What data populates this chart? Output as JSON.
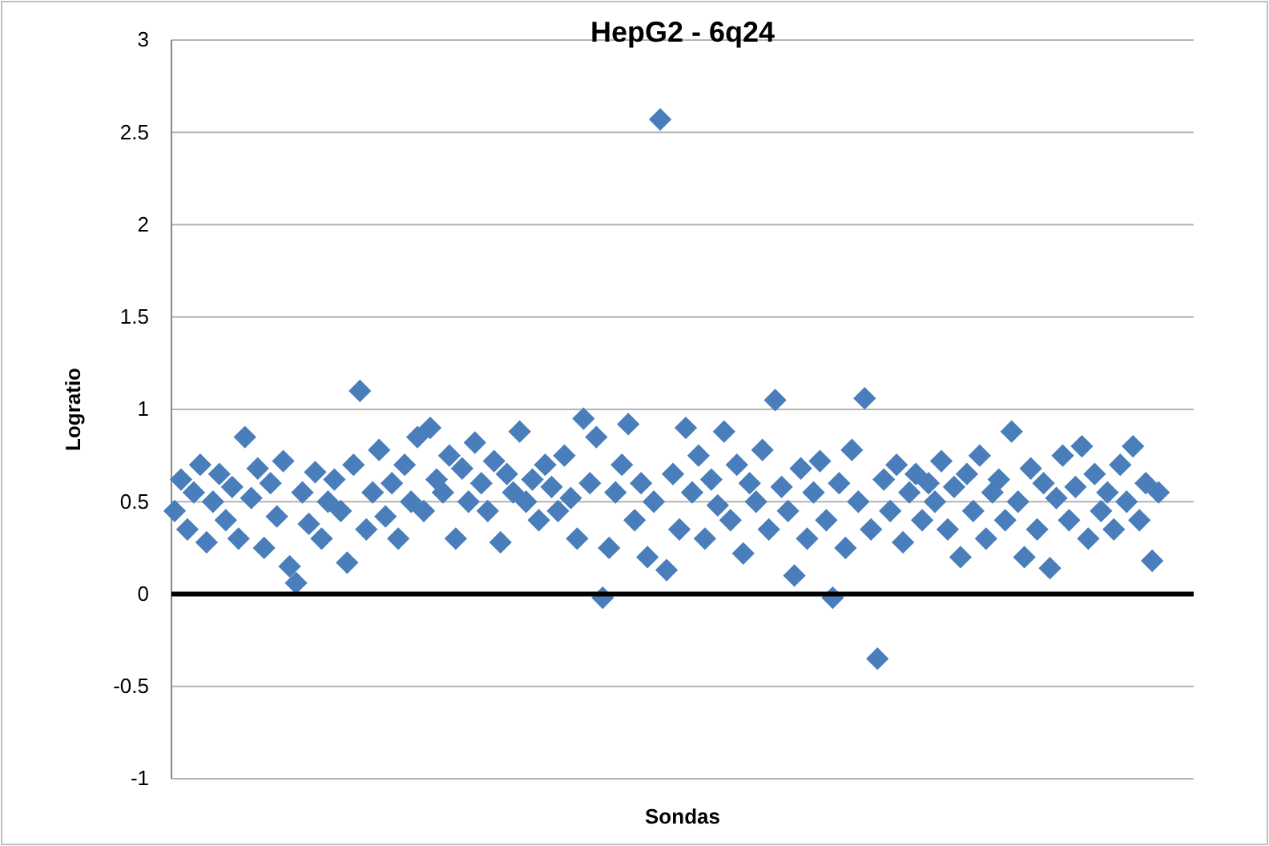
{
  "chart_data": {
    "type": "scatter",
    "title": "HepG2 - 6q24",
    "xlabel": "Sondas",
    "ylabel": "Logratio",
    "categories": [
      null,
      null,
      null,
      null,
      null,
      null,
      null,
      null,
      null,
      null,
      null,
      null,
      null,
      null,
      null,
      null,
      null,
      null,
      null,
      null,
      null,
      null,
      null,
      null,
      null,
      null,
      null,
      null,
      null,
      null,
      null,
      null,
      null,
      null,
      null,
      null,
      null,
      null,
      null,
      null,
      null,
      null,
      null,
      null,
      null,
      null,
      null,
      null,
      null,
      null,
      null,
      null,
      null,
      null,
      null,
      null,
      null,
      null,
      null,
      null,
      null,
      null,
      null,
      null,
      null,
      null,
      null,
      null,
      null,
      null,
      null,
      null,
      null,
      null,
      null,
      null,
      null,
      null,
      null,
      null,
      null,
      null,
      null,
      null,
      null,
      null,
      null,
      null,
      null,
      null,
      null,
      null,
      null,
      null,
      null,
      null,
      null,
      null,
      null,
      null,
      null,
      null,
      null,
      null,
      null,
      null,
      null,
      null,
      null,
      null,
      null,
      null,
      null,
      null,
      null,
      null,
      null,
      null,
      null,
      null,
      null,
      null,
      null,
      null,
      null,
      null,
      null,
      null,
      null,
      null,
      null,
      null,
      null,
      null,
      null,
      null,
      null,
      null,
      null,
      null,
      null,
      null,
      null,
      null,
      null,
      null,
      null,
      null,
      null,
      null,
      null,
      null,
      null,
      null,
      null,
      null,
      null,
      null,
      null,
      null
    ],
    "series": [
      {
        "color": "#4a7ebb",
        "values": [
          0.45,
          0.62,
          0.35,
          0.55,
          0.7,
          0.28,
          0.5,
          0.65,
          0.4,
          0.58,
          0.3,
          0.85,
          0.52,
          0.68,
          0.25,
          0.6,
          0.42,
          0.72,
          0.15,
          0.06,
          0.55,
          0.38,
          0.66,
          0.3,
          0.5,
          0.62,
          0.45,
          0.17,
          0.7,
          1.1,
          0.35,
          0.55,
          0.78,
          0.42,
          0.6,
          0.3,
          0.7,
          0.5,
          0.85,
          0.45,
          0.9,
          0.62,
          0.55,
          0.75,
          0.3,
          0.68,
          0.5,
          0.82,
          0.6,
          0.45,
          0.72,
          0.28,
          0.65,
          0.55,
          0.88,
          0.5,
          0.62,
          0.4,
          0.7,
          0.58,
          0.45,
          0.75,
          0.52,
          0.3,
          0.95,
          0.6,
          0.85,
          -0.02,
          0.25,
          0.55,
          0.7,
          0.92,
          0.4,
          0.6,
          0.2,
          0.5,
          2.57,
          0.13,
          0.65,
          0.35,
          0.9,
          0.55,
          0.75,
          0.3,
          0.62,
          0.48,
          0.88,
          0.4,
          0.7,
          0.22,
          0.6,
          0.5,
          0.78,
          0.35,
          1.05,
          0.58,
          0.45,
          0.1,
          0.68,
          0.3,
          0.55,
          0.72,
          0.4,
          -0.02,
          0.6,
          0.25,
          0.78,
          0.5,
          1.06,
          0.35,
          -0.35,
          0.62,
          0.45,
          0.7,
          0.28,
          0.55,
          0.65,
          0.4,
          0.6,
          0.5,
          0.72,
          0.35,
          0.58,
          0.2,
          0.65,
          0.45,
          0.75,
          0.3,
          0.55,
          0.62,
          0.4,
          0.88,
          0.5,
          0.2,
          0.68,
          0.35,
          0.6,
          0.14,
          0.52,
          0.75,
          0.4,
          0.58,
          0.8,
          0.3,
          0.65,
          0.45,
          0.55,
          0.35,
          0.7,
          0.5,
          0.8,
          0.4,
          0.6,
          0.18,
          0.55,
          null,
          null,
          null,
          null,
          null
        ]
      }
    ],
    "ylim": [
      -1,
      3
    ],
    "yticks": [
      -1,
      -0.5,
      0,
      0.5,
      1,
      1.5,
      2,
      2.5,
      3
    ],
    "grid": "y",
    "marker": "diamond",
    "ref_lines": [
      {
        "axis": "y",
        "value": 0,
        "color": "#000000"
      }
    ]
  }
}
